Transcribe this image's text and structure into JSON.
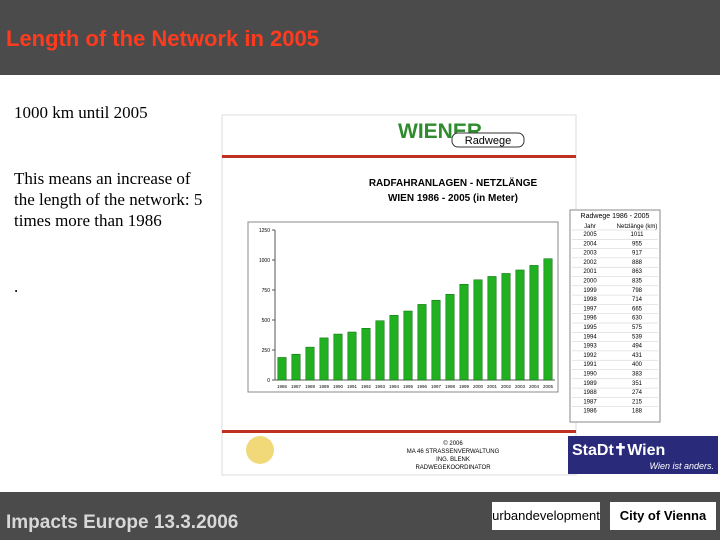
{
  "header": {
    "title": "Length of the Network in 2005"
  },
  "body": {
    "lines": [
      "1000 km until 2005",
      "This means an increase of the length of the network:  5 times more than 1986",
      "."
    ]
  },
  "image": {
    "brand": "WIENER",
    "brand_tag": "Radwege",
    "credits": [
      "© 2006",
      "MA 46 STRASSENVERWALTUNG",
      "ING. BLENK",
      "RADWEGEKOORDINATOR"
    ],
    "city_logo": "StaDt✝Wien",
    "city_slogan": "Wien ist anders.",
    "table_title": "Radwege 1986 - 2005",
    "table_headers": [
      "Jahr",
      "Netzlänge (km)"
    ]
  },
  "chart_data": {
    "type": "bar",
    "title": [
      "RADFAHRANLAGEN - NETZLÄNGE",
      "WIEN 1986 - 2005 (in Meter)"
    ],
    "categories": [
      "1986",
      "1987",
      "1988",
      "1989",
      "1990",
      "1991",
      "1992",
      "1993",
      "1994",
      "1995",
      "1996",
      "1997",
      "1998",
      "1999",
      "2000",
      "2001",
      "2002",
      "2003",
      "2004",
      "2005"
    ],
    "values": [
      188,
      215,
      274,
      351,
      383,
      400,
      431,
      494,
      539,
      575,
      630,
      665,
      714,
      798,
      835,
      863,
      888,
      917,
      955,
      1011
    ],
    "color": "#22b022",
    "ylim": [
      0,
      1250
    ],
    "yticks": [
      0,
      250,
      500,
      750,
      1000,
      1250
    ]
  },
  "footer": {
    "text": "Impacts Europe 13.3.2006",
    "logo1": "urbandevelopment",
    "logo2": "City of Vienna"
  }
}
